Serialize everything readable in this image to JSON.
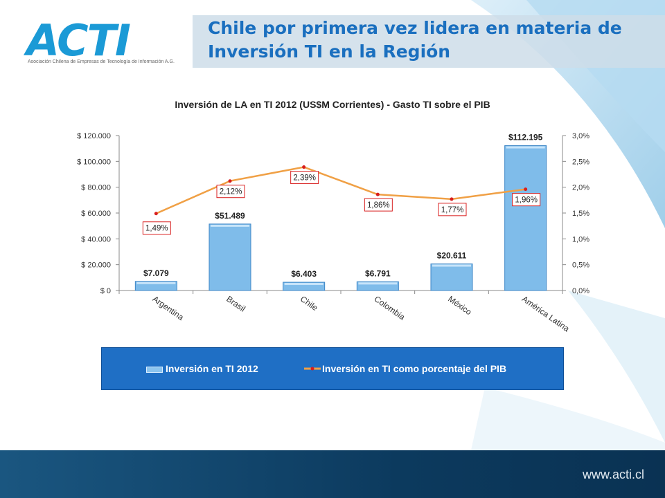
{
  "logo": {
    "name": "ACTI",
    "tagline": "Asociación Chilena de Empresas de Tecnología de Información A.G."
  },
  "slide": {
    "title": "Chile por primera vez lidera en materia de Inversión TI en la Región"
  },
  "footer": {
    "url": "www.acti.cl"
  },
  "colors": {
    "bar": "#7fbcea",
    "line": "#f0a045",
    "point": "#d81e1e",
    "title": "#1a6fbf",
    "legend_bg": "#1f6fc5"
  },
  "chart_data": {
    "type": "bar",
    "title": "Inversión de LA en TI 2012 (US$M Corrientes) - Gasto TI sobre el PIB",
    "categories": [
      "Argentina",
      "Brasil",
      "Chile",
      "Colombia",
      "México",
      "América Latina"
    ],
    "series": [
      {
        "name": "Inversión en TI 2012",
        "type": "bar",
        "axis": "left",
        "values": [
          7079,
          51489,
          6403,
          6791,
          20611,
          112195
        ],
        "labels": [
          "$7.079",
          "$51.489",
          "$6.403",
          "$6.791",
          "$20.611",
          "$112.195"
        ]
      },
      {
        "name": "Inversión en TI como porcentaje del PIB",
        "type": "line",
        "axis": "right",
        "values": [
          1.49,
          2.12,
          2.39,
          1.86,
          1.77,
          1.96
        ],
        "labels": [
          "1,49%",
          "2,12%",
          "2,39%",
          "1,86%",
          "1,77%",
          "1,96%"
        ]
      }
    ],
    "y_left": {
      "min": 0,
      "max": 120000,
      "ticks": [
        0,
        20000,
        40000,
        60000,
        80000,
        100000,
        120000
      ],
      "tick_labels": [
        "$ 0",
        "$ 20.000",
        "$ 40.000",
        "$ 60.000",
        "$ 80.000",
        "$ 100.000",
        "$ 120.000"
      ]
    },
    "y_right": {
      "min": 0,
      "max": 3,
      "ticks": [
        0,
        0.5,
        1,
        1.5,
        2,
        2.5,
        3
      ],
      "tick_labels": [
        "0,0%",
        "0,5%",
        "1,0%",
        "1,5%",
        "2,0%",
        "2,5%",
        "3,0%"
      ]
    },
    "grid": false,
    "legend_position": "bottom"
  }
}
